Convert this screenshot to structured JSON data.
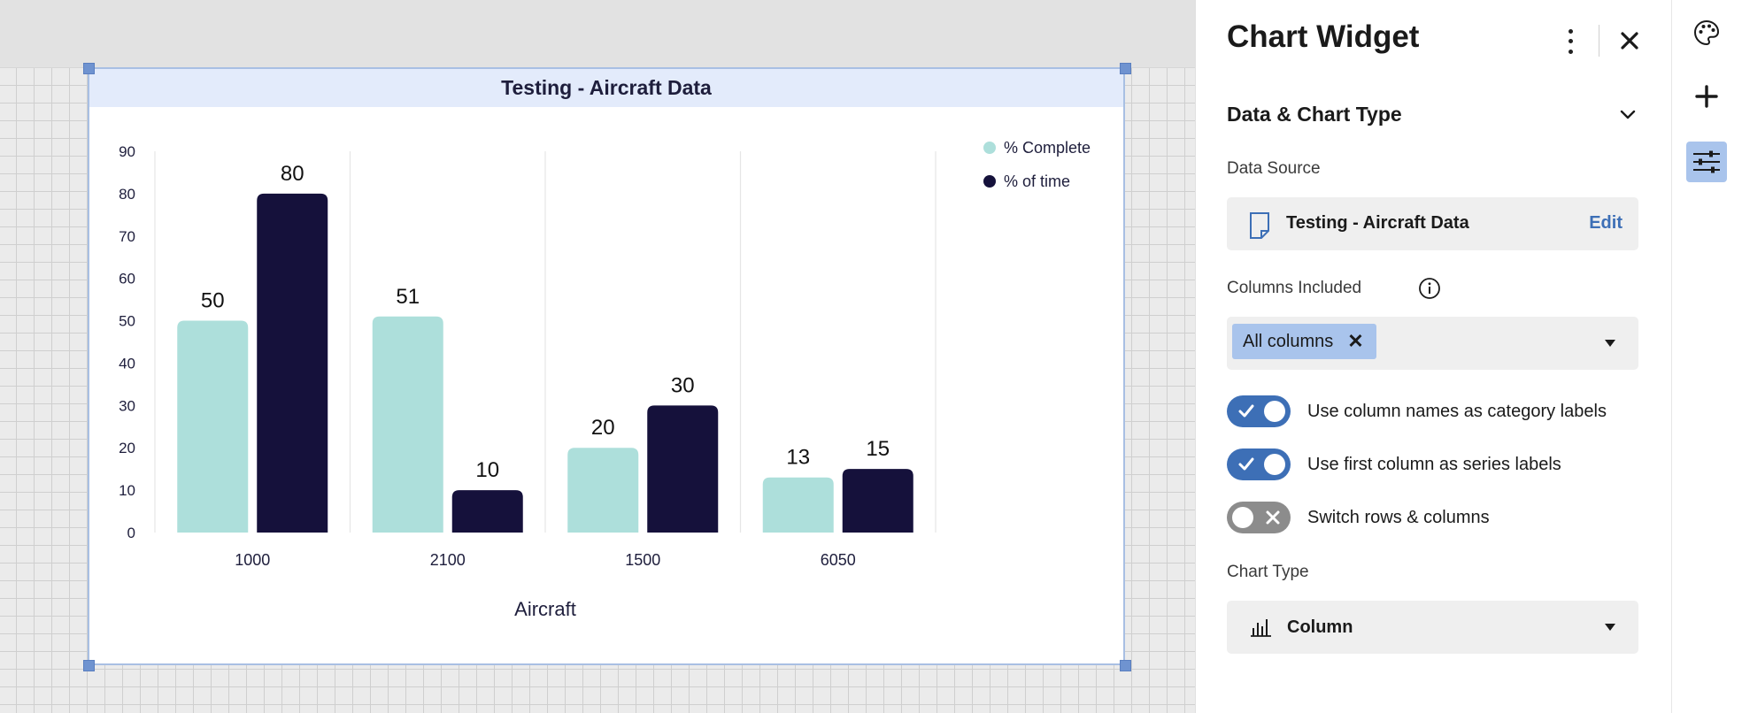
{
  "chart_data": {
    "type": "bar",
    "title": "Testing - Aircraft Data",
    "xlabel": "Aircraft",
    "ylabel": "",
    "categories": [
      "1000",
      "2100",
      "1500",
      "6050"
    ],
    "series": [
      {
        "name": "% Complete",
        "values": [
          50,
          51,
          20,
          13
        ],
        "color": "#addfdb"
      },
      {
        "name": "% of time",
        "values": [
          80,
          10,
          30,
          15
        ],
        "color": "#15113b"
      }
    ],
    "ylim": [
      0,
      90
    ],
    "yticks": [
      "0",
      "10",
      "20",
      "30",
      "40",
      "50",
      "60",
      "70",
      "80",
      "90"
    ],
    "grid": "vertical category separators",
    "legend_position": "top-right"
  },
  "panel": {
    "title": "Chart Widget",
    "section_title": "Data & Chart Type",
    "data_source_label": "Data Source",
    "data_source_name": "Testing - Aircraft Data",
    "edit_label": "Edit",
    "columns_label": "Columns Included",
    "columns_tag": "All columns",
    "toggles": [
      {
        "label": "Use column names as category labels",
        "on": true
      },
      {
        "label": "Use first column as series labels",
        "on": true
      },
      {
        "label": "Switch rows & columns",
        "on": false
      }
    ],
    "chart_type_label": "Chart Type",
    "chart_type_value": "Column"
  },
  "icons": {
    "menu": "kebab-menu-icon",
    "close": "close-icon",
    "section": "chevron-down-icon",
    "source": "document-icon",
    "info": "info-icon",
    "chart_type": "column-chart-icon",
    "rail": [
      "palette-icon",
      "plus-icon",
      "sliders-icon"
    ]
  },
  "colors": {
    "accent": "#3d6fb6",
    "tag_bg": "#a9c4ec",
    "series_light": "#addfdb",
    "series_dark": "#15113b"
  }
}
